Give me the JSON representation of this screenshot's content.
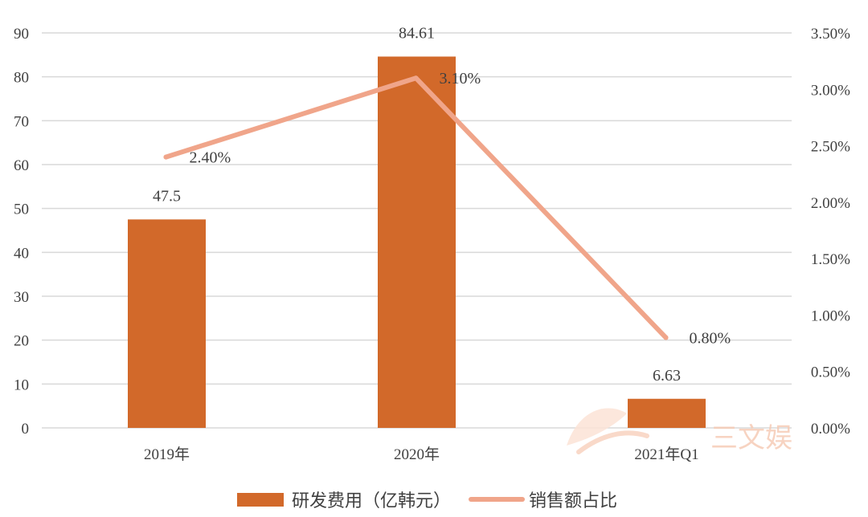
{
  "chart_data": {
    "type": "bar",
    "categories": [
      "2019年",
      "2020年",
      "2021年Q1"
    ],
    "series": [
      {
        "name": "研发费用（亿韩元）",
        "type": "bar",
        "axis": "left",
        "values": [
          47.5,
          84.61,
          6.63
        ],
        "labels": [
          "47.5",
          "84.61",
          "6.63"
        ],
        "color": "#d2692a"
      },
      {
        "name": "销售额占比",
        "type": "line",
        "axis": "right",
        "values": [
          2.4,
          3.1,
          0.8
        ],
        "labels": [
          "2.40%",
          "3.10%",
          "0.80%"
        ],
        "color": "#f0a58a"
      }
    ],
    "y_left": {
      "min": 0,
      "max": 90,
      "step": 10,
      "ticks": [
        "0",
        "10",
        "20",
        "30",
        "40",
        "50",
        "60",
        "70",
        "80",
        "90"
      ]
    },
    "y_right": {
      "min": 0,
      "max": 3.5,
      "step": 0.5,
      "ticks": [
        "0.00%",
        "0.50%",
        "1.00%",
        "1.50%",
        "2.00%",
        "2.50%",
        "3.00%",
        "3.50%"
      ]
    },
    "grid": true,
    "legend_position": "bottom"
  },
  "watermark": {
    "text": "三文娱",
    "color": "#f6c9b2"
  },
  "gridline_color": "#d9d9d9"
}
